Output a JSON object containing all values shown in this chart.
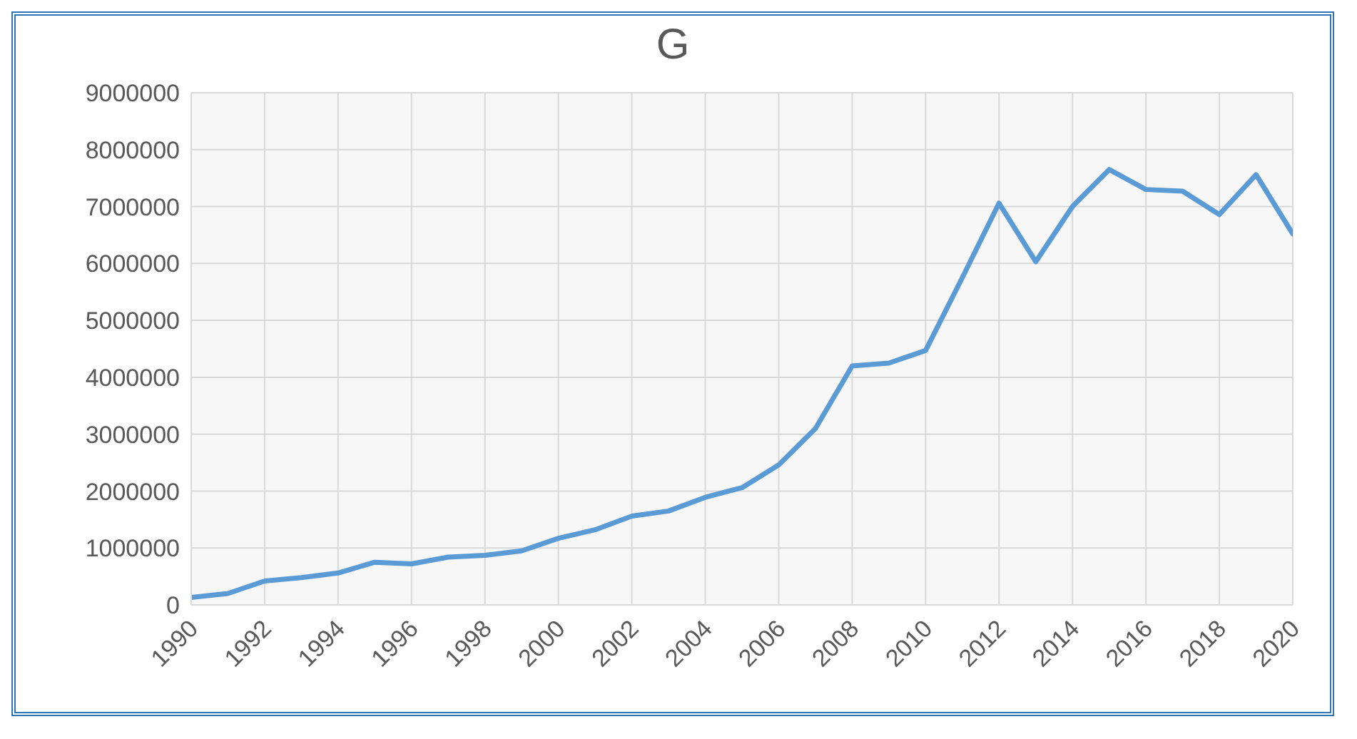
{
  "chart_data": {
    "type": "line",
    "title": "G",
    "x": [
      1990,
      1991,
      1992,
      1993,
      1994,
      1995,
      1996,
      1997,
      1998,
      1999,
      2000,
      2001,
      2002,
      2003,
      2004,
      2005,
      2006,
      2007,
      2008,
      2009,
      2010,
      2011,
      2012,
      2013,
      2014,
      2015,
      2016,
      2017,
      2018,
      2019,
      2020
    ],
    "series": [
      {
        "color": "#5b9bd5",
        "values": [
          130000,
          200000,
          420000,
          480000,
          560000,
          750000,
          720000,
          840000,
          870000,
          950000,
          1170000,
          1320000,
          1560000,
          1650000,
          1890000,
          2060000,
          2460000,
          3100000,
          4200000,
          4250000,
          4470000,
          5750000,
          7060000,
          6030000,
          7000000,
          7650000,
          7300000,
          7270000,
          6860000,
          7560000,
          6520000
        ]
      }
    ],
    "xlim": [
      1990,
      2020
    ],
    "xticks": [
      1990,
      1992,
      1994,
      1996,
      1998,
      2000,
      2002,
      2004,
      2006,
      2008,
      2010,
      2012,
      2014,
      2016,
      2018,
      2020
    ],
    "ylim": [
      0,
      9000000
    ],
    "yticks": [
      0,
      1000000,
      2000000,
      3000000,
      4000000,
      5000000,
      6000000,
      7000000,
      8000000,
      9000000
    ],
    "grid": true,
    "marker": "none",
    "line_style": "solid"
  }
}
